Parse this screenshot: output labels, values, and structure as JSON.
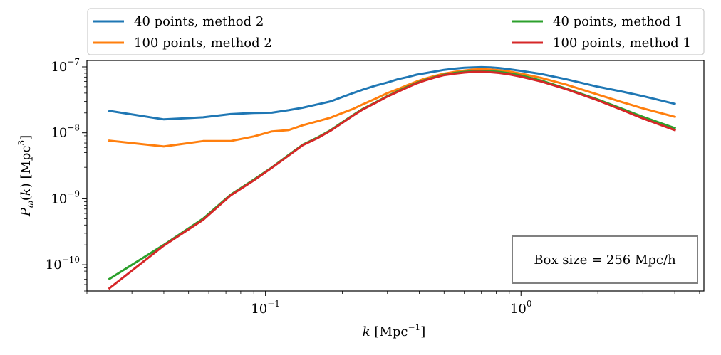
{
  "chart_data": {
    "type": "line",
    "title": "",
    "xlabel": "k [Mpc⁻¹]",
    "ylabel": "Pω(k) [Mpc³]",
    "xscale": "log",
    "yscale": "log",
    "xlim": [
      0.02,
      5.2
    ],
    "ylim": [
      4e-11,
      1.25e-07
    ],
    "x_major_ticks": [
      {
        "value": 0.1,
        "base": "10",
        "exp": "−1"
      },
      {
        "value": 1.0,
        "base": "10",
        "exp": "0"
      }
    ],
    "y_major_ticks": [
      {
        "value": 1e-10,
        "base": "10",
        "exp": "−10"
      },
      {
        "value": 1e-09,
        "base": "10",
        "exp": "−9"
      },
      {
        "value": 1e-08,
        "base": "10",
        "exp": "−8"
      },
      {
        "value": 1e-07,
        "base": "10",
        "exp": "−7"
      }
    ],
    "legend_position": "top, outside plot, two columns",
    "annotation": "Box size = 256 Mpc/h",
    "annotation_position": "bottom-right",
    "x": [
      0.0245,
      0.04,
      0.057,
      0.073,
      0.09,
      0.106,
      0.123,
      0.14,
      0.16,
      0.18,
      0.2,
      0.22,
      0.24,
      0.27,
      0.3,
      0.33,
      0.36,
      0.39,
      0.42,
      0.46,
      0.5,
      0.55,
      0.6,
      0.65,
      0.7,
      0.76,
      0.82,
      0.9,
      1.0,
      1.2,
      1.5,
      2.0,
      2.5,
      3.0,
      4.0
    ],
    "series": [
      {
        "name": "40 points, method 2",
        "color": "#1f77b4",
        "values": [
          2.15e-08,
          1.6e-08,
          1.72e-08,
          1.92e-08,
          2e-08,
          2.02e-08,
          2.2e-08,
          2.4e-08,
          2.7e-08,
          3e-08,
          3.5e-08,
          4e-08,
          4.5e-08,
          5.2e-08,
          5.8e-08,
          6.5e-08,
          7e-08,
          7.6e-08,
          8e-08,
          8.5e-08,
          9e-08,
          9.4e-08,
          9.7e-08,
          9.8e-08,
          9.9e-08,
          9.8e-08,
          9.6e-08,
          9.2e-08,
          8.7e-08,
          7.8e-08,
          6.5e-08,
          5e-08,
          4.2e-08,
          3.6e-08,
          2.75e-08
        ]
      },
      {
        "name": "100 points, method 2",
        "color": "#ff7f0e",
        "values": [
          7.6e-09,
          6.2e-09,
          7.5e-09,
          7.5e-09,
          8.8e-09,
          1.05e-08,
          1.1e-08,
          1.3e-08,
          1.5e-08,
          1.7e-08,
          2e-08,
          2.3e-08,
          2.7e-08,
          3.3e-08,
          4e-08,
          4.6e-08,
          5.3e-08,
          6e-08,
          6.6e-08,
          7.3e-08,
          7.9e-08,
          8.4e-08,
          8.8e-08,
          9.1e-08,
          9.2e-08,
          9.1e-08,
          8.9e-08,
          8.5e-08,
          7.9e-08,
          6.8e-08,
          5.4e-08,
          3.8e-08,
          2.9e-08,
          2.35e-08,
          1.75e-08
        ]
      },
      {
        "name": "40 points, method 1",
        "color": "#2ca02c",
        "values": [
          6.1e-11,
          2e-10,
          5e-10,
          1.15e-09,
          1.95e-09,
          3e-09,
          4.6e-09,
          6.6e-09,
          8.5e-09,
          1.1e-08,
          1.45e-08,
          1.85e-08,
          2.3e-08,
          2.9e-08,
          3.6e-08,
          4.3e-08,
          5e-08,
          5.7e-08,
          6.3e-08,
          7e-08,
          7.6e-08,
          8.1e-08,
          8.4e-08,
          8.6e-08,
          8.7e-08,
          8.6e-08,
          8.4e-08,
          8e-08,
          7.4e-08,
          6.2e-08,
          4.7e-08,
          3.2e-08,
          2.3e-08,
          1.75e-08,
          1.18e-08
        ]
      },
      {
        "name": "100 points, method 1",
        "color": "#d62728",
        "values": [
          4.4e-11,
          1.95e-10,
          4.8e-10,
          1.12e-09,
          1.9e-09,
          2.95e-09,
          4.5e-09,
          6.5e-09,
          8.3e-09,
          1.08e-08,
          1.42e-08,
          1.82e-08,
          2.25e-08,
          2.85e-08,
          3.55e-08,
          4.2e-08,
          4.9e-08,
          5.6e-08,
          6.2e-08,
          6.9e-08,
          7.5e-08,
          7.9e-08,
          8.2e-08,
          8.4e-08,
          8.4e-08,
          8.3e-08,
          8.1e-08,
          7.7e-08,
          7.1e-08,
          6e-08,
          4.6e-08,
          3.1e-08,
          2.2e-08,
          1.65e-08,
          1.1e-08
        ]
      }
    ]
  }
}
